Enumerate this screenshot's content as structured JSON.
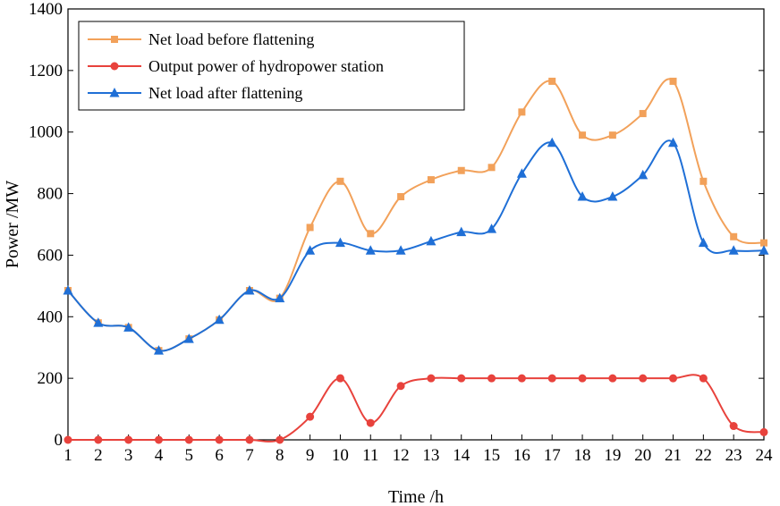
{
  "chart_data": {
    "type": "line",
    "title": "",
    "xlabel": "Time /h",
    "ylabel": "Power /MW",
    "x": [
      1,
      2,
      3,
      4,
      5,
      6,
      7,
      8,
      9,
      10,
      11,
      12,
      13,
      14,
      15,
      16,
      17,
      18,
      19,
      20,
      21,
      22,
      23,
      24
    ],
    "xlim": [
      1,
      24
    ],
    "ylim": [
      0,
      1400
    ],
    "yticks": [
      0,
      200,
      400,
      600,
      800,
      1000,
      1200,
      1400
    ],
    "grid": false,
    "legend_position": "top-left",
    "series": [
      {
        "name": "Net load before flattening",
        "color": "#f2a15a",
        "marker": "square",
        "values": [
          485,
          380,
          365,
          290,
          328,
          390,
          485,
          460,
          690,
          840,
          670,
          790,
          845,
          875,
          885,
          1065,
          1165,
          990,
          990,
          1060,
          1165,
          840,
          660,
          640
        ]
      },
      {
        "name": "Output power of hydropower station",
        "color": "#e8423c",
        "marker": "circle",
        "values": [
          0,
          0,
          0,
          0,
          0,
          0,
          0,
          0,
          75,
          200,
          55,
          175,
          200,
          200,
          200,
          200,
          200,
          200,
          200,
          200,
          200,
          200,
          45,
          25
        ]
      },
      {
        "name": "Net load after flattening",
        "color": "#1f6fd6",
        "marker": "triangle",
        "values": [
          485,
          380,
          365,
          290,
          328,
          390,
          485,
          460,
          615,
          640,
          615,
          615,
          645,
          675,
          685,
          865,
          965,
          790,
          790,
          860,
          965,
          640,
          615,
          615
        ]
      }
    ]
  }
}
